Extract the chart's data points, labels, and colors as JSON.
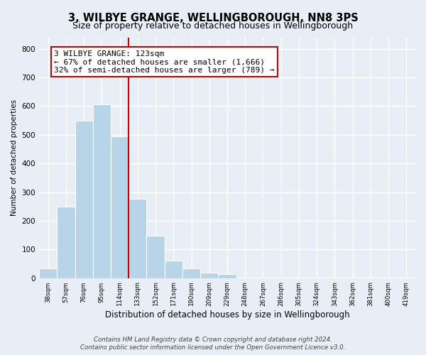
{
  "title": "3, WILBYE GRANGE, WELLINGBOROUGH, NN8 3PS",
  "subtitle": "Size of property relative to detached houses in Wellingborough",
  "xlabel": "Distribution of detached houses by size in Wellingborough",
  "ylabel": "Number of detached properties",
  "bar_labels": [
    "38sqm",
    "57sqm",
    "76sqm",
    "95sqm",
    "114sqm",
    "133sqm",
    "152sqm",
    "171sqm",
    "190sqm",
    "209sqm",
    "229sqm",
    "248sqm",
    "267sqm",
    "286sqm",
    "305sqm",
    "324sqm",
    "343sqm",
    "362sqm",
    "381sqm",
    "400sqm",
    "419sqm"
  ],
  "bar_values": [
    35,
    250,
    550,
    605,
    495,
    277,
    147,
    60,
    33,
    20,
    13,
    2,
    1,
    1,
    1,
    1,
    1,
    1,
    1,
    1,
    2
  ],
  "bar_color": "#b8d4e8",
  "bar_edge_color": "#b8d4e8",
  "vline_x": 4.5,
  "vline_color": "#cc0000",
  "annotation_line1": "3 WILBYE GRANGE: 123sqm",
  "annotation_line2": "← 67% of detached houses are smaller (1,666)",
  "annotation_line3": "32% of semi-detached houses are larger (789) →",
  "annotation_box_color": "white",
  "annotation_box_edge": "#cc0000",
  "ylim": [
    0,
    840
  ],
  "yticks": [
    0,
    100,
    200,
    300,
    400,
    500,
    600,
    700,
    800
  ],
  "footer_line1": "Contains HM Land Registry data © Crown copyright and database right 2024.",
  "footer_line2": "Contains public sector information licensed under the Open Government Licence v3.0.",
  "bg_color": "#e8eef5",
  "plot_bg_color": "#e8eef5",
  "title_fontsize": 10.5,
  "subtitle_fontsize": 9,
  "xlabel_fontsize": 8.5,
  "ylabel_fontsize": 7.5,
  "annotation_fontsize": 8.0,
  "footer_fontsize": 6.2
}
